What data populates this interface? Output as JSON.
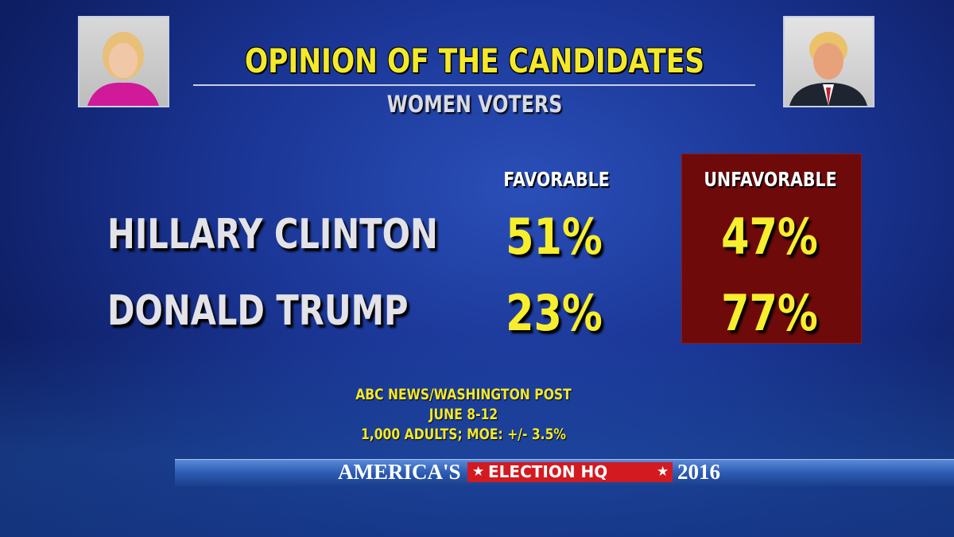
{
  "header": {
    "title": "OPINION OF THE CANDIDATES",
    "subtitle": "WOMEN VOTERS"
  },
  "table": {
    "columns": [
      "FAVORABLE",
      "UNFAVORABLE"
    ],
    "rows": [
      {
        "label": "HILLARY CLINTON",
        "values": [
          "51%",
          "47%"
        ]
      },
      {
        "label": "DONALD TRUMP",
        "values": [
          "23%",
          "77%"
        ]
      }
    ]
  },
  "source": [
    "ABC NEWS/WASHINGTON POST",
    "JUNE 8-12",
    "1,000 ADULTS; MOE: +/- 3.5%"
  ],
  "banner": [
    "AMERICA'S",
    "ELECTION HQ",
    "2016"
  ]
}
